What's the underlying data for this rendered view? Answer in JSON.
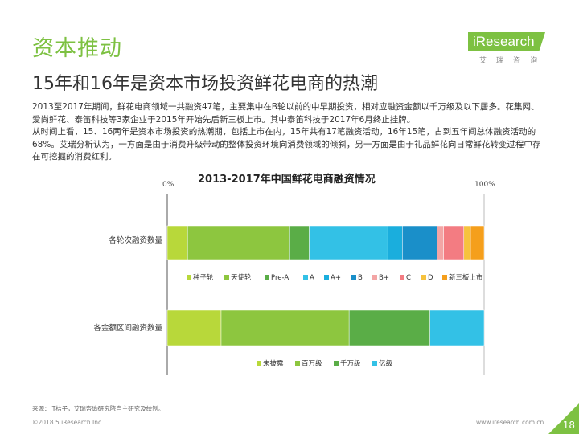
{
  "header": {
    "section_title": "资本推动",
    "headline": "15年和16年是资本市场投资鲜花电商的热潮"
  },
  "brand": {
    "logo_text": "iResearch",
    "logo_sub": "艾瑞咨询"
  },
  "body": {
    "paragraph1": "2013至2017年期间，鲜花电商领域一共融资47笔，主要集中在B轮以前的中早期投资，相对应融资金额以千万级及以下居多。花集网、爱尚鲜花、泰笛科技等3家企业于2015年开始先后新三板上市。其中泰笛科技于2017年6月终止挂牌。",
    "paragraph2": "从时间上看，15、16两年是资本市场投资的热潮期，包括上市在内，15年共有17笔融资活动，16年15笔，占到五年间总体融资活动的68%。艾瑞分析认为，一方面是由于消费升级带动的整体投资环境向消费领域的倾斜，另一方面是由于礼品鲜花向日常鲜花转变过程中存在可挖掘的消费红利。"
  },
  "chart_data": [
    {
      "type": "bar",
      "orientation": "horizontal",
      "stacked": true,
      "normalized": true,
      "title": "2013-2017年中国鲜花电商融资情况",
      "axis_min_label": "0%",
      "axis_max_label": "100%",
      "category": "各轮次融资数量",
      "series": [
        {
          "name": "种子轮",
          "value": 6.4,
          "color": "#b8d83a"
        },
        {
          "name": "天使轮",
          "value": 32.0,
          "color": "#8dc63f"
        },
        {
          "name": "Pre-A",
          "value": 6.4,
          "color": "#5aad47"
        },
        {
          "name": "A",
          "value": 24.8,
          "color": "#33c1e6"
        },
        {
          "name": "A+",
          "value": 4.6,
          "color": "#1aaedd"
        },
        {
          "name": "B",
          "value": 10.9,
          "color": "#1a8fc9"
        },
        {
          "name": "B+",
          "value": 2.1,
          "color": "#f3a5a5"
        },
        {
          "name": "C",
          "value": 6.4,
          "color": "#f37c82"
        },
        {
          "name": "D",
          "value": 2.1,
          "color": "#f6c23e"
        },
        {
          "name": "新三板上市",
          "value": 4.3,
          "color": "#f59f1c"
        }
      ]
    },
    {
      "type": "bar",
      "orientation": "horizontal",
      "stacked": true,
      "normalized": true,
      "category": "各金额区间融资数量",
      "series": [
        {
          "name": "未披露",
          "value": 17.0,
          "color": "#b8d83a"
        },
        {
          "name": "百万级",
          "value": 40.4,
          "color": "#8dc63f"
        },
        {
          "name": "千万级",
          "value": 25.5,
          "color": "#5aad47"
        },
        {
          "name": "亿级",
          "value": 17.1,
          "color": "#33c1e6"
        }
      ]
    }
  ],
  "footer": {
    "source": "来源：IT桔子，艾瑞咨询研究院自主研究及绘制。",
    "copyright": "©2018.5 iResearch Inc",
    "website": "www.iresearch.com.cn",
    "page_number": "18"
  }
}
